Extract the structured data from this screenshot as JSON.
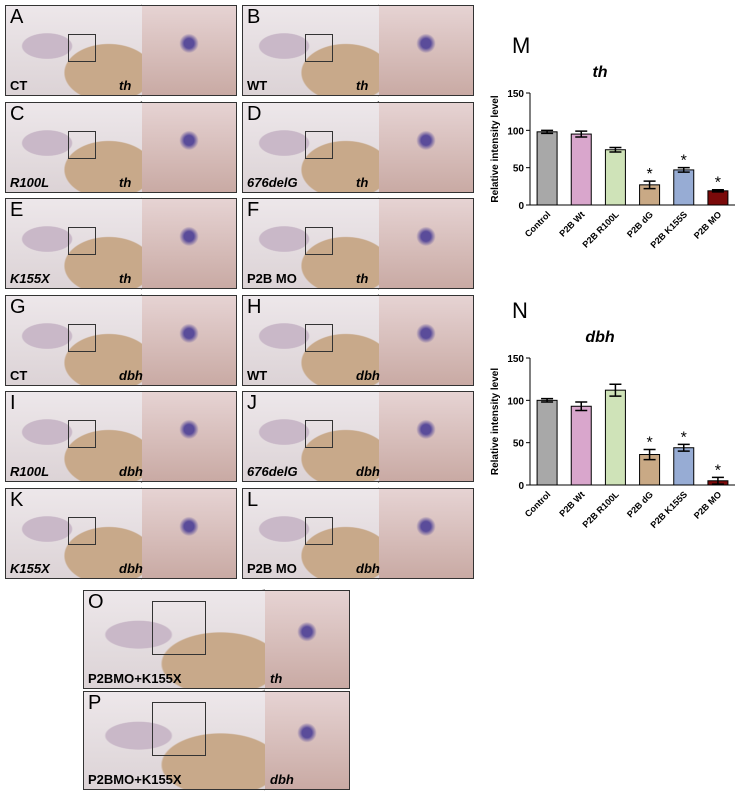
{
  "panels": [
    {
      "letter": "A",
      "label": "CT",
      "gene": "th"
    },
    {
      "letter": "B",
      "label": "WT",
      "gene": "th"
    },
    {
      "letter": "C",
      "label": "R100L",
      "gene": "th",
      "italic": true
    },
    {
      "letter": "D",
      "label": "676delG",
      "gene": "th",
      "italic": true
    },
    {
      "letter": "E",
      "label": "K155X",
      "gene": "th",
      "italic": true
    },
    {
      "letter": "F",
      "label": "P2B MO",
      "gene": "th"
    },
    {
      "letter": "G",
      "label": "CT",
      "gene": "dbh"
    },
    {
      "letter": "H",
      "label": "WT",
      "gene": "dbh"
    },
    {
      "letter": "I",
      "label": "R100L",
      "gene": "dbh",
      "italic": true
    },
    {
      "letter": "J",
      "label": "676delG",
      "gene": "dbh",
      "italic": true
    },
    {
      "letter": "K",
      "label": "K155X",
      "gene": "dbh",
      "italic": true
    },
    {
      "letter": "L",
      "label": "P2B MO",
      "gene": "dbh"
    },
    {
      "letter": "O",
      "label": "P2BMO+K155X",
      "gene": "th"
    },
    {
      "letter": "P",
      "label": "P2BMO+K155X",
      "gene": "dbh"
    }
  ],
  "chart_data": [
    {
      "type": "bar",
      "panel": "M",
      "title": "th",
      "y_label": "Relative intensity level",
      "categories": [
        "Control",
        "P2B Wt",
        "P2B R100L",
        "P2B dG",
        "P2B K155S",
        "P2B MO"
      ],
      "values": [
        98,
        95,
        74,
        27,
        47,
        19
      ],
      "errors": [
        2,
        4,
        3,
        5,
        3,
        1.5
      ],
      "colors": [
        "#a8a8a8",
        "#d9a6cc",
        "#cfe3b8",
        "#c9a985",
        "#97acd4",
        "#7a0a0a"
      ],
      "annotations": [
        {
          "category": "P2B dG",
          "text": "*"
        },
        {
          "category": "P2B K155S",
          "text": "*"
        },
        {
          "category": "P2B MO",
          "text": "*"
        }
      ],
      "ylim": [
        0,
        150
      ],
      "yticks": [
        0,
        50,
        100,
        150
      ]
    },
    {
      "type": "bar",
      "panel": "N",
      "title": "dbh",
      "y_label": "Relative intensity level",
      "categories": [
        "Control",
        "P2B Wt",
        "P2B R100L",
        "P2B dG",
        "P2B K155S",
        "P2B MO"
      ],
      "values": [
        100,
        93,
        112,
        36,
        44,
        5
      ],
      "errors": [
        2,
        5,
        7,
        6,
        4,
        4
      ],
      "colors": [
        "#a8a8a8",
        "#d9a6cc",
        "#cfe3b8",
        "#c9a985",
        "#97acd4",
        "#7a0a0a"
      ],
      "annotations": [
        {
          "category": "P2B dG",
          "text": "*"
        },
        {
          "category": "P2B K155S",
          "text": "*"
        },
        {
          "category": "P2B MO",
          "text": "*"
        }
      ],
      "ylim": [
        0,
        150
      ],
      "yticks": [
        0,
        50,
        100,
        150
      ]
    }
  ]
}
